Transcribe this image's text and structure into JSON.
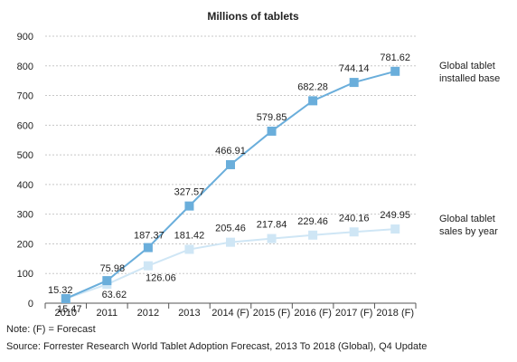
{
  "chart_data": {
    "type": "line",
    "title": "Millions of tablets",
    "xlabel": "",
    "ylabel": "",
    "categories": [
      "2010",
      "2011",
      "2012",
      "2013",
      "2014 (F)",
      "2015 (F)",
      "2016 (F)",
      "2017 (F)",
      "2018 (F)"
    ],
    "ylim": [
      0,
      900
    ],
    "yticks": [
      0,
      100,
      200,
      300,
      400,
      500,
      600,
      700,
      800,
      900
    ],
    "grid": true,
    "series": [
      {
        "name": "Global tablet installed base",
        "legend_lines": [
          "Global tablet",
          "installed base"
        ],
        "color": "#6aaedb",
        "values": [
          15.32,
          75.98,
          187.37,
          327.57,
          466.91,
          579.85,
          682.28,
          744.14,
          781.62
        ],
        "labels": [
          "15.32",
          "75.98",
          "187.37",
          "327.57",
          "466.91",
          "579.85",
          "682.28",
          "744.14",
          "781.62"
        ]
      },
      {
        "name": "Global tablet sales by year",
        "legend_lines": [
          "Global tablet",
          "sales by year"
        ],
        "color": "#cfe6f5",
        "values": [
          15.47,
          63.62,
          126.06,
          181.42,
          205.46,
          217.84,
          229.46,
          240.16,
          249.95
        ],
        "labels": [
          "15.47",
          "63.62",
          "126.06",
          "181.42",
          "205.46",
          "217.84",
          "229.46",
          "240.16",
          "249.95"
        ]
      }
    ]
  },
  "notes": {
    "note": "Note: (F) = Forecast",
    "source": "Source: Forrester Research World Tablet Adoption Forecast, 2013 To 2018 (Global), Q4 Update"
  }
}
